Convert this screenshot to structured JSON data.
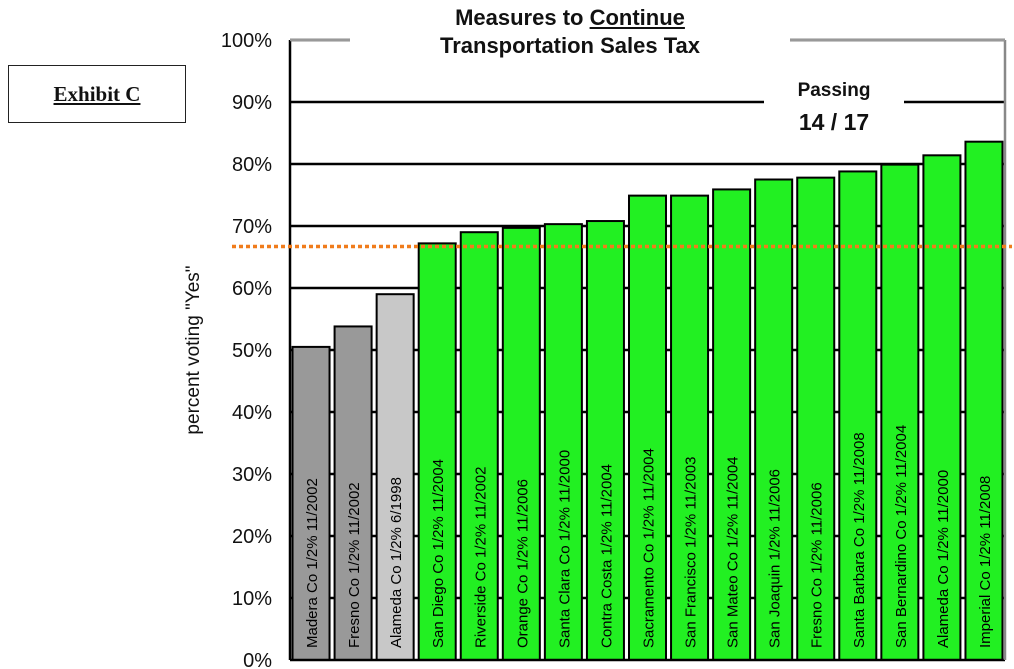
{
  "exhibit": {
    "label": "Exhibit C"
  },
  "title": {
    "line1_prefix": "Measures to ",
    "line1_underlined": "Continue",
    "line2": "Transportation Sales Tax"
  },
  "passing": {
    "label": "Passing",
    "count": "14 / 17"
  },
  "chart_data": {
    "type": "bar",
    "title": "Measures to Continue Transportation Sales Tax",
    "xlabel": "",
    "ylabel": "percent voting \"Yes\"",
    "ylim": [
      0,
      100
    ],
    "yticks": [
      "0%",
      "10%",
      "20%",
      "30%",
      "40%",
      "50%",
      "60%",
      "70%",
      "80%",
      "90%",
      "100%"
    ],
    "grid": "horizontal",
    "threshold": {
      "value": 66.7,
      "color": "#f07c1c",
      "style": "dotted"
    },
    "colors": {
      "failing_dark": "#999999",
      "failing_light": "#c8c8c8",
      "passing": "#22f022",
      "outline": "#000000"
    },
    "categories": [
      "Madera Co 1/2% 11/2002",
      "Fresno Co 1/2% 11/2002",
      "Alameda Co 1/2% 6/1998",
      "San Diego Co 1/2% 11/2004",
      "Riverside Co 1/2% 11/2002",
      "Orange Co 1/2% 11/2006",
      "Santa Clara Co 1/2% 11/2000",
      "Contra Costa 1/2% 11/2004",
      "Sacramento Co 1/2% 11/2004",
      "San Francisco 1/2% 11/2003",
      "San Mateo Co 1/2% 11/2004",
      "San Joaquin 1/2% 11/2006",
      "Fresno Co 1/2% 11/2006",
      "Santa Barbara Co 1/2% 11/2008",
      "San Bernardino Co 1/2% 11/2004",
      "Alameda Co 1/2% 11/2000",
      "Imperial Co 1/2% 11/2008"
    ],
    "values": [
      50.5,
      53.8,
      59.0,
      67.2,
      69.0,
      69.7,
      70.3,
      70.8,
      74.9,
      74.9,
      75.9,
      77.5,
      77.8,
      78.8,
      79.9,
      81.4,
      83.6
    ],
    "bar_colors": [
      "#999999",
      "#999999",
      "#c8c8c8",
      "#22f022",
      "#22f022",
      "#22f022",
      "#22f022",
      "#22f022",
      "#22f022",
      "#22f022",
      "#22f022",
      "#22f022",
      "#22f022",
      "#22f022",
      "#22f022",
      "#22f022",
      "#22f022"
    ]
  }
}
